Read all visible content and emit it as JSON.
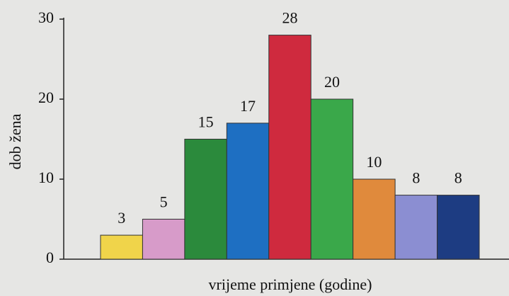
{
  "chart_data": {
    "type": "bar",
    "y_label": "dob žena",
    "x_label": "vrijeme primjene (godine)",
    "categories": [
      null,
      null,
      null,
      null,
      null,
      null,
      null,
      null,
      null
    ],
    "values": [
      3,
      5,
      15,
      17,
      28,
      20,
      10,
      8,
      8
    ],
    "colors": [
      "#f0d44a",
      "#d79bc9",
      "#2b8a3c",
      "#1e6fc2",
      "#cf2a3e",
      "#3aa84a",
      "#e08a3c",
      "#8b8ed2",
      "#1d3c82"
    ],
    "ylim": [
      0,
      30
    ],
    "yticks": [
      0,
      10,
      20,
      30
    ],
    "grid": false
  }
}
